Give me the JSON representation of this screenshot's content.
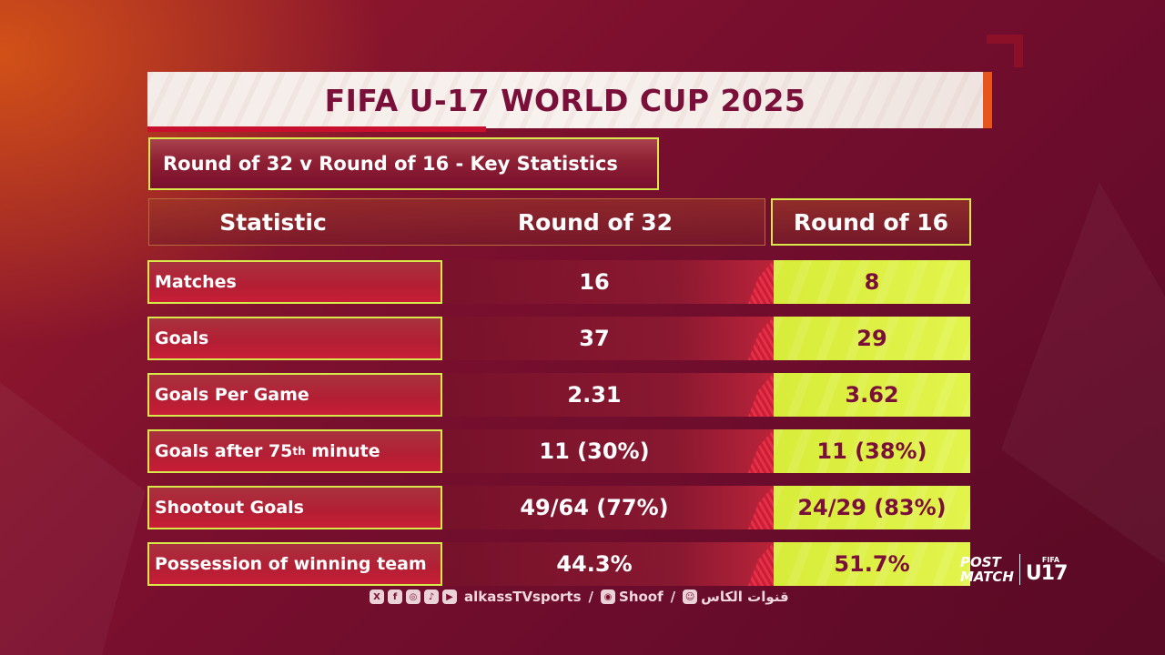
{
  "title": "FIFA U-17 WORLD CUP 2025",
  "subtitle": "Round of 32 v Round of 16 - Key Statistics",
  "headers": {
    "statistic": "Statistic",
    "round32": "Round of 32",
    "round16": "Round of 16"
  },
  "rows": [
    {
      "label": "Matches",
      "r32": "16",
      "r16": "8"
    },
    {
      "label": "Goals",
      "r32": "37",
      "r16": "29"
    },
    {
      "label": "Goals Per Game",
      "r32": "2.31",
      "r16": "3.62"
    },
    {
      "label_prefix": "Goals after 75",
      "label_sup": "th",
      "label_suffix": " minute",
      "r32": "11 (30%)",
      "r16": "11 (38%)"
    },
    {
      "label": "Shootout Goals",
      "r32": "49/64 (77%)",
      "r16": "24/29 (83%)"
    },
    {
      "label": "Possession of winning team",
      "r32": "44.3%",
      "r16": "51.7%"
    }
  ],
  "footer": {
    "social_icons": [
      "x-icon",
      "facebook-icon",
      "instagram-icon",
      "tiktok-icon",
      "youtube-icon"
    ],
    "handle": "alkassTVsports",
    "sep1": "/",
    "shoof": "Shoof",
    "sep2": "/",
    "arabic": "قنوات الكاس"
  },
  "logo": {
    "post": "POST",
    "match": "MATCH",
    "fifa": "FIFA",
    "u17": "U17"
  },
  "colors": {
    "accent_lime": "#d8ec3a",
    "accent_orange": "#e8551c",
    "title_text": "#7a0f3a",
    "background": "#7a0f2e"
  }
}
